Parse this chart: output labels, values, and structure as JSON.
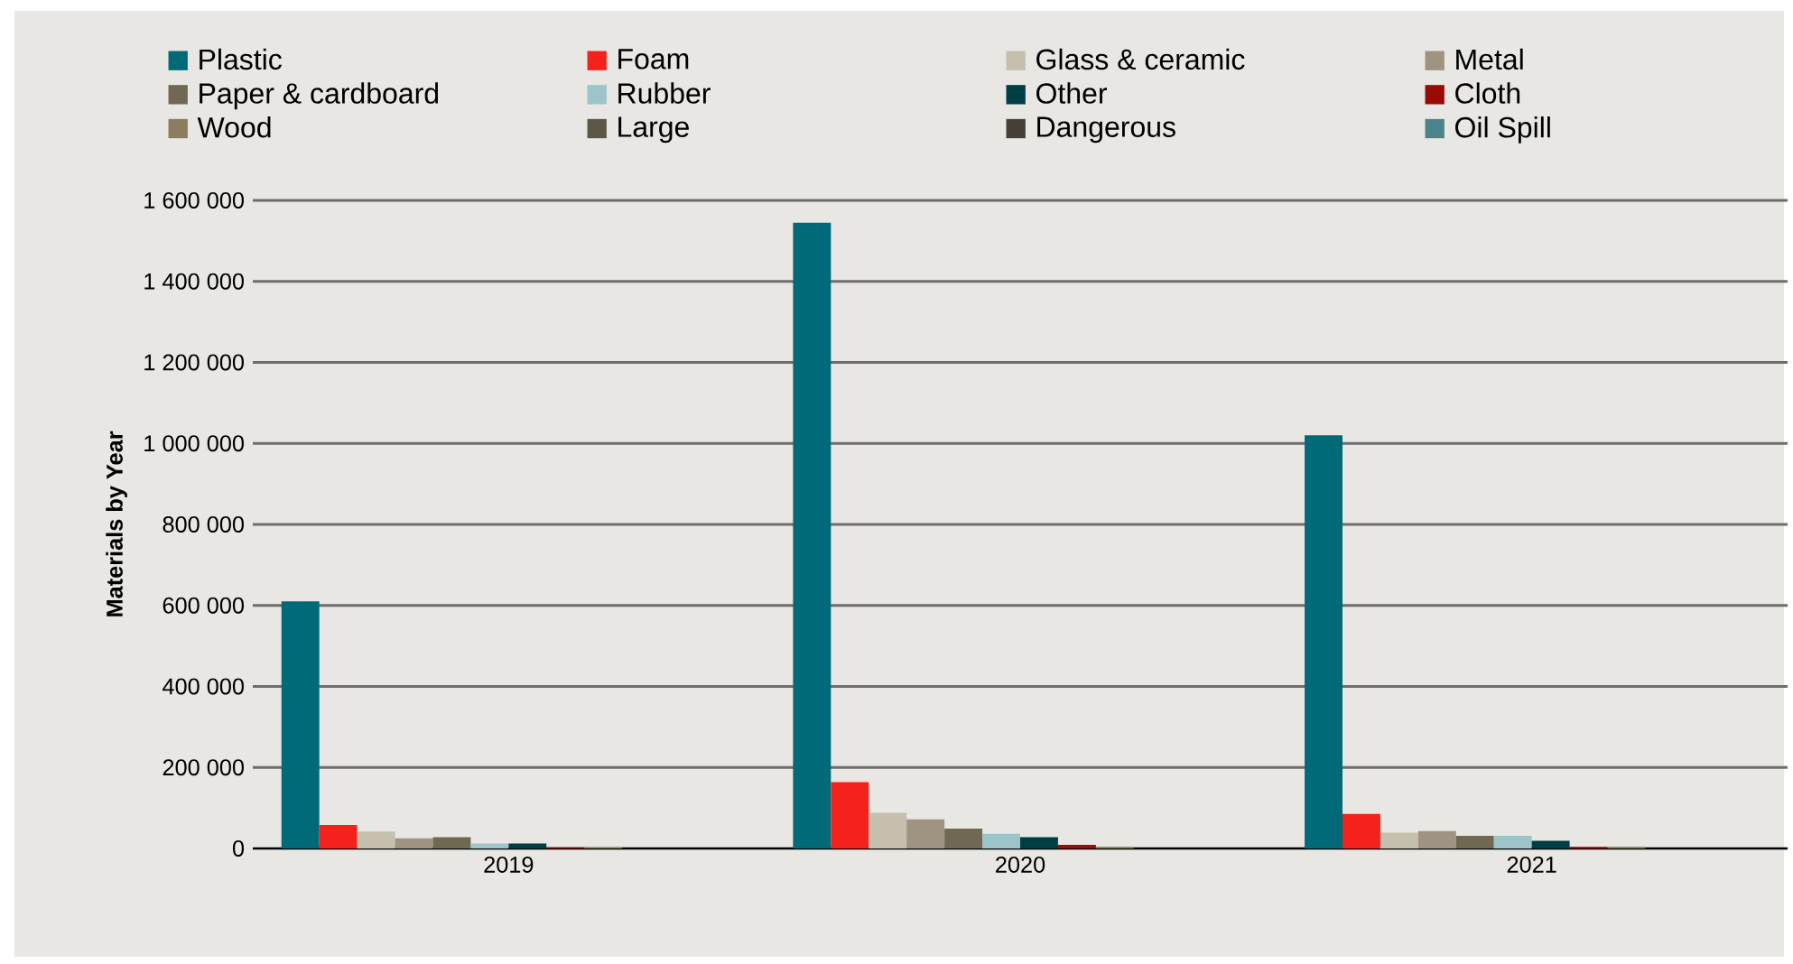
{
  "chart_data": {
    "type": "bar",
    "ylabel": "Materials by Year",
    "categories": [
      "2019",
      "2020",
      "2021"
    ],
    "series": [
      {
        "name": "Plastic",
        "color": "#006a78",
        "values": [
          610000,
          1545000,
          1020000
        ]
      },
      {
        "name": "Foam",
        "color": "#f5221b",
        "values": [
          58000,
          164000,
          85000
        ]
      },
      {
        "name": "Glass & ceramic",
        "color": "#c6bfad",
        "values": [
          42000,
          88000,
          39000
        ]
      },
      {
        "name": "Metal",
        "color": "#9f9482",
        "values": [
          25000,
          72000,
          43000
        ]
      },
      {
        "name": "Paper & cardboard",
        "color": "#716853",
        "values": [
          28000,
          49000,
          31000
        ]
      },
      {
        "name": "Rubber",
        "color": "#9dc4c8",
        "values": [
          12000,
          36000,
          31000
        ]
      },
      {
        "name": "Other",
        "color": "#003e46",
        "values": [
          12000,
          28000,
          19000
        ]
      },
      {
        "name": "Cloth",
        "color": "#9a0b06",
        "values": [
          3000,
          9000,
          4000
        ]
      },
      {
        "name": "Wood",
        "color": "#8b7d5e",
        "values": [
          3000,
          4000,
          4000
        ]
      },
      {
        "name": "Large",
        "color": "#5d5748",
        "values": [
          0,
          0,
          0
        ]
      },
      {
        "name": "Dangerous",
        "color": "#463f35",
        "values": [
          0,
          0,
          0
        ]
      },
      {
        "name": "Oil Spill",
        "color": "#4c838a",
        "values": [
          0,
          0,
          0
        ]
      }
    ],
    "ylim": [
      0,
      1600000
    ],
    "yticks": [
      {
        "value": 0,
        "label": "0"
      },
      {
        "value": 200000,
        "label": "200 000"
      },
      {
        "value": 400000,
        "label": "400 000"
      },
      {
        "value": 600000,
        "label": "600 000"
      },
      {
        "value": 800000,
        "label": "800 000"
      },
      {
        "value": 1000000,
        "label": "1 000 000"
      },
      {
        "value": 1200000,
        "label": "1 200 000"
      },
      {
        "value": 1400000,
        "label": "1 400 000"
      },
      {
        "value": 1600000,
        "label": "1 600 000"
      }
    ],
    "grid": "y",
    "legend": "top"
  }
}
